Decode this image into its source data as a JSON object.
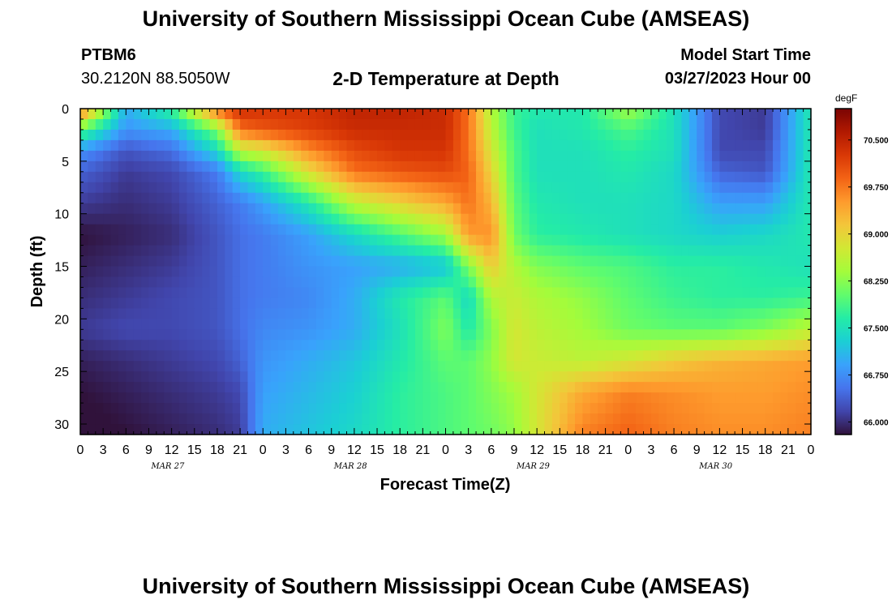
{
  "page": {
    "title": "University of Southern Mississippi Ocean Cube (AMSEAS)",
    "station_id": "PTBM6",
    "station_coords": "30.2120N  88.5050W",
    "plot_title": "2-D Temperature at Depth",
    "model_start_label": "Model Start Time",
    "model_start_value": "03/27/2023 Hour 00",
    "footer_title": "University of Southern Mississippi Ocean Cube (AMSEAS)"
  },
  "chart_data": {
    "type": "heatmap",
    "title": "2-D Temperature at Depth",
    "xlabel": "Forecast Time(Z)",
    "ylabel": "Depth (ft)",
    "colorbar_label": "degF",
    "x_ticks": [
      "0",
      "3",
      "6",
      "9",
      "12",
      "15",
      "18",
      "21",
      "0",
      "3",
      "6",
      "9",
      "12",
      "15",
      "18",
      "21",
      "0",
      "3",
      "6",
      "9",
      "12",
      "15",
      "18",
      "21",
      "0",
      "3",
      "6",
      "9",
      "12",
      "15",
      "18",
      "21",
      "0"
    ],
    "x_day_labels": [
      "MAR 27",
      "MAR 28",
      "MAR 29",
      "MAR 30"
    ],
    "x_range_hours": [
      0,
      96
    ],
    "y_ticks": [
      "0",
      "5",
      "10",
      "15",
      "20",
      "25",
      "30"
    ],
    "y_range_ft": [
      0,
      31
    ],
    "y_inverted": true,
    "colorbar_ticks": [
      "70.500",
      "69.750",
      "69.000",
      "68.250",
      "67.500",
      "66.750",
      "66.000"
    ],
    "colorbar_range": [
      65.8,
      71.0
    ],
    "grid": false,
    "colorscale": [
      "#30123b",
      "#4145ab",
      "#4675ed",
      "#39a2fc",
      "#1bcfd4",
      "#24eca6",
      "#61fc6c",
      "#a4fc3b",
      "#d1e834",
      "#f3c63a",
      "#fe9b2d",
      "#f36315",
      "#d93806",
      "#b11901",
      "#7a0403"
    ],
    "hour_points": [
      0,
      6,
      12,
      18,
      21,
      24,
      30,
      36,
      42,
      48,
      51,
      54,
      57,
      60,
      66,
      72,
      78,
      84,
      90,
      96
    ],
    "depth_points": [
      0,
      2,
      4,
      6,
      9,
      12,
      15,
      18,
      21,
      24,
      27,
      31
    ],
    "temperatures": [
      [
        69.9,
        67.0,
        67.8,
        69.9,
        70.4,
        70.3,
        70.3,
        70.5,
        70.5,
        70.4,
        69.8,
        68.5,
        67.8,
        67.6,
        67.6,
        68.4,
        67.5,
        66.2,
        66.1,
        67.6
      ],
      [
        68.0,
        66.8,
        67.0,
        68.2,
        69.8,
        70.0,
        70.2,
        70.4,
        70.4,
        70.4,
        69.8,
        68.6,
        67.8,
        67.5,
        67.6,
        67.9,
        67.5,
        66.2,
        66.1,
        67.6
      ],
      [
        66.8,
        66.3,
        66.5,
        67.4,
        68.6,
        68.8,
        69.6,
        70.1,
        70.3,
        70.3,
        69.8,
        68.8,
        67.9,
        67.5,
        67.5,
        67.7,
        67.5,
        66.2,
        66.2,
        67.6
      ],
      [
        66.4,
        66.1,
        66.2,
        66.6,
        67.4,
        67.8,
        68.9,
        69.8,
        70.0,
        70.1,
        69.9,
        69.0,
        67.9,
        67.5,
        67.5,
        67.6,
        67.4,
        66.4,
        66.3,
        67.6
      ],
      [
        66.1,
        66.0,
        66.1,
        66.4,
        66.6,
        66.9,
        67.6,
        68.6,
        69.0,
        69.4,
        69.8,
        69.3,
        68.0,
        67.6,
        67.5,
        67.5,
        67.4,
        66.9,
        66.9,
        67.6
      ],
      [
        65.8,
        65.9,
        66.0,
        66.3,
        66.5,
        66.6,
        66.9,
        67.4,
        67.9,
        68.4,
        69.5,
        69.6,
        68.1,
        67.7,
        67.6,
        67.5,
        67.4,
        67.3,
        67.4,
        67.6
      ],
      [
        65.9,
        66.0,
        66.1,
        66.3,
        66.5,
        66.6,
        66.8,
        66.9,
        67.0,
        67.2,
        68.2,
        69.1,
        68.5,
        68.2,
        68.0,
        67.9,
        67.7,
        67.7,
        67.6,
        67.5
      ],
      [
        66.0,
        66.1,
        66.2,
        66.3,
        66.5,
        66.6,
        66.7,
        67.0,
        67.6,
        68.0,
        67.4,
        68.5,
        68.7,
        68.5,
        68.3,
        68.0,
        67.8,
        67.7,
        67.7,
        67.8
      ],
      [
        66.1,
        66.2,
        66.2,
        66.3,
        66.5,
        66.7,
        66.8,
        67.0,
        67.5,
        68.2,
        67.6,
        68.2,
        68.8,
        68.6,
        68.4,
        68.1,
        68.0,
        68.0,
        68.2,
        68.6
      ],
      [
        65.9,
        66.0,
        66.1,
        66.2,
        66.4,
        66.8,
        67.0,
        67.2,
        67.6,
        68.0,
        68.0,
        68.3,
        68.8,
        68.7,
        68.6,
        68.8,
        69.1,
        69.3,
        69.4,
        69.5
      ],
      [
        65.8,
        65.9,
        66.0,
        66.1,
        66.2,
        66.9,
        67.1,
        67.3,
        67.7,
        67.9,
        68.0,
        68.2,
        68.4,
        68.8,
        69.4,
        69.7,
        69.6,
        69.5,
        69.5,
        69.6
      ],
      [
        65.7,
        65.8,
        65.9,
        66.0,
        66.1,
        67.0,
        67.2,
        67.4,
        67.7,
        67.9,
        68.0,
        68.1,
        68.3,
        68.8,
        69.7,
        69.9,
        69.7,
        69.6,
        69.6,
        69.7
      ]
    ]
  }
}
